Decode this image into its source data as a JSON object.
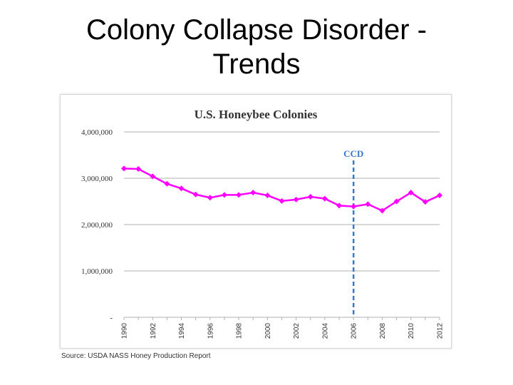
{
  "slide": {
    "title_line1": "Colony Collapse Disorder -",
    "title_line2": "Trends"
  },
  "source": "Source: USDA NASS Honey Production Report",
  "chart_data": {
    "type": "line",
    "title": "U.S. Honeybee Colonies",
    "xlabel": "",
    "ylabel": "",
    "x": [
      1990,
      1991,
      1992,
      1993,
      1994,
      1995,
      1996,
      1997,
      1998,
      1999,
      2000,
      2001,
      2002,
      2003,
      2004,
      2005,
      2006,
      2007,
      2008,
      2009,
      2010,
      2011,
      2012
    ],
    "series": [
      {
        "values": [
          3210000,
          3200000,
          3040000,
          2880000,
          2780000,
          2650000,
          2580000,
          2640000,
          2640000,
          2690000,
          2630000,
          2510000,
          2540000,
          2600000,
          2560000,
          2410000,
          2390000,
          2440000,
          2300000,
          2500000,
          2690000,
          2490000,
          2630000
        ]
      }
    ],
    "xlim": [
      1990,
      2012
    ],
    "ylim": [
      0,
      4000000
    ],
    "yticks": [
      0,
      1000000,
      2000000,
      3000000,
      4000000
    ],
    "ytick_labels": [
      "-",
      "1,000,000",
      "2,000,000",
      "3,000,000",
      "4,000,000"
    ],
    "xtick_labels": [
      "1990",
      "1992",
      "1994",
      "1996",
      "1998",
      "2000",
      "2002",
      "2004",
      "2006",
      "2008",
      "2010",
      "2012"
    ],
    "grid": true,
    "annotation": {
      "label": "CCD",
      "x": 2006
    },
    "colors": {
      "line": "#ff00ff",
      "marker": "#ff00ff",
      "annotation": "#3a78c8",
      "grid": "#b0b0b0",
      "text": "#333333"
    }
  }
}
